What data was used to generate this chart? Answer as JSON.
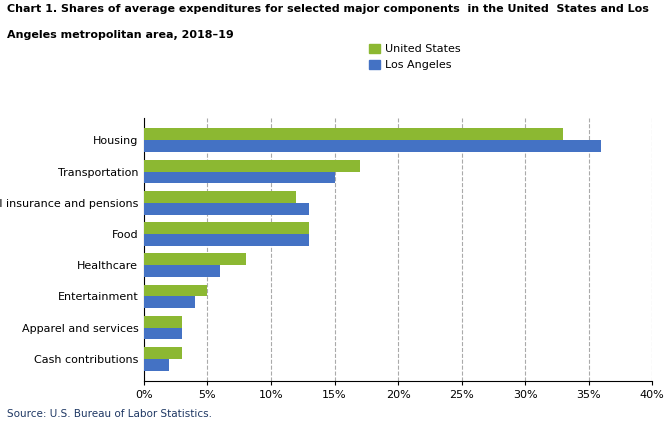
{
  "title_line1": "Chart 1. Shares of average expenditures for selected major components  in the United  States and Los",
  "title_line2": "Angeles metropolitan area, 2018–19",
  "categories": [
    "Cash contributions",
    "Apparel and services",
    "Entertainment",
    "Healthcare",
    "Food",
    "Personal insurance and pensions",
    "Transportation",
    "Housing"
  ],
  "us_values": [
    3.0,
    3.0,
    5.0,
    8.0,
    13.0,
    12.0,
    17.0,
    33.0
  ],
  "la_values": [
    2.0,
    3.0,
    4.0,
    6.0,
    13.0,
    13.0,
    15.0,
    36.0
  ],
  "us_color": "#8CB832",
  "la_color": "#4472C4",
  "legend_labels": [
    "United States",
    "Los Angeles"
  ],
  "xlim": [
    0,
    40
  ],
  "xtick_values": [
    0,
    5,
    10,
    15,
    20,
    25,
    30,
    35,
    40
  ],
  "xtick_labels": [
    "0%",
    "5%",
    "10%",
    "15%",
    "20%",
    "25%",
    "30%",
    "35%",
    "40%"
  ],
  "source_text": "Source: U.S. Bureau of Labor Statistics.",
  "background_color": "#ffffff",
  "grid_color": "#aaaaaa",
  "bar_height": 0.38,
  "title_fontsize": 8.0,
  "tick_fontsize": 8.0,
  "legend_fontsize": 8.0,
  "source_fontsize": 7.5
}
